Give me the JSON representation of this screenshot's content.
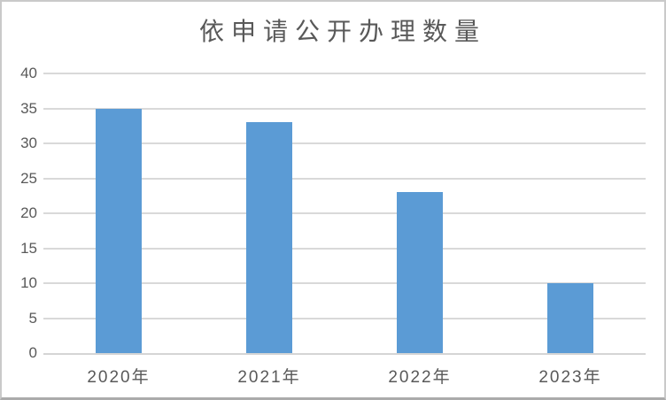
{
  "frame": {
    "background": "#ffffff",
    "border_color": "#c9c9c9",
    "border_bottom_color": "#ababab"
  },
  "chart_data": {
    "type": "bar",
    "title": "依申请公开办理数量",
    "categories": [
      "2020年",
      "2021年",
      "2022年",
      "2023年"
    ],
    "values": [
      35,
      33,
      23,
      10
    ],
    "xlabel": "",
    "ylabel": "",
    "ylim": [
      0,
      40
    ],
    "yticks": [
      0,
      5,
      10,
      15,
      20,
      25,
      30,
      35,
      40
    ],
    "grid": "horizontal",
    "legend": "none",
    "colors": {
      "bar": "#5B9BD5",
      "gridline": "#D9D9D9",
      "axis_line": "#D5D5D5",
      "tick_label": "#595959",
      "title": "#595959"
    }
  }
}
